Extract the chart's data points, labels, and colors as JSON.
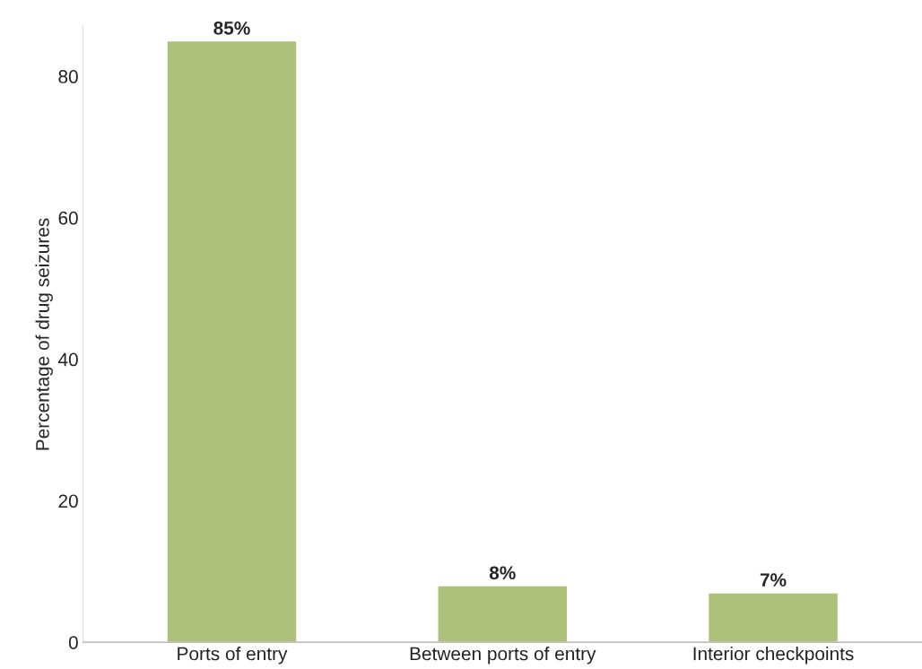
{
  "chart_data": {
    "type": "bar",
    "ylabel": "Percentage of drug seizures",
    "categories": [
      "Ports of entry",
      "Between ports of entry",
      "Interior checkpoints"
    ],
    "values": [
      85,
      8,
      7
    ],
    "color": "#adc17b",
    "value_labels": [
      "85%",
      "8%",
      "7%"
    ],
    "ylim": [
      0,
      87
    ],
    "yticks": [
      0,
      20,
      40,
      60,
      80
    ],
    "grid": false
  }
}
